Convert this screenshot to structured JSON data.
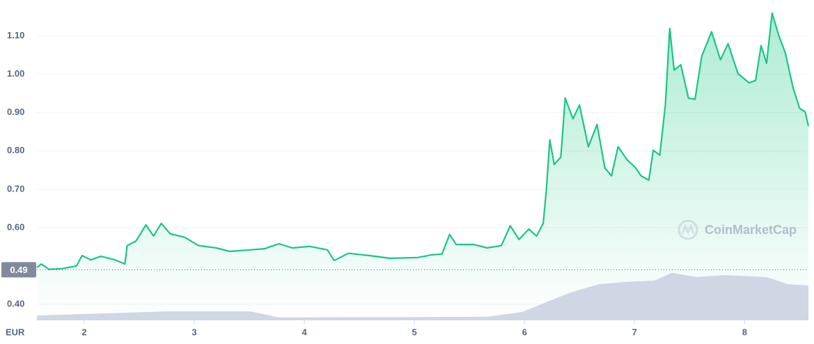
{
  "chart_data": {
    "type": "line",
    "currency": "EUR",
    "watermark": "CoinMarketCap",
    "current_price": {
      "value": 0.49,
      "label": "0.49"
    },
    "xlim": [
      1.57,
      8.58
    ],
    "xticks": [
      2,
      3,
      4,
      5,
      6,
      7,
      8
    ],
    "ylim": [
      0.358,
      1.194
    ],
    "yticks": [
      {
        "value": 0.4,
        "label": "0.40"
      },
      {
        "value": 0.6,
        "label": "0.60"
      },
      {
        "value": 0.7,
        "label": "0.70"
      },
      {
        "value": 0.8,
        "label": "0.80"
      },
      {
        "value": 0.9,
        "label": "0.90"
      },
      {
        "value": 1.0,
        "label": "1.00"
      },
      {
        "value": 1.1,
        "label": "1.10"
      }
    ],
    "y2lim": [
      0,
      100
    ],
    "grid": true,
    "series": [
      {
        "color": "#16c784",
        "x": [
          1.57,
          1.61,
          1.68,
          1.8,
          1.93,
          1.98,
          2.06,
          2.15,
          2.28,
          2.37,
          2.39,
          2.47,
          2.56,
          2.63,
          2.7,
          2.78,
          2.91,
          3.04,
          3.2,
          3.32,
          3.51,
          3.64,
          3.77,
          3.89,
          4.05,
          4.21,
          4.27,
          4.4,
          4.59,
          4.78,
          5.03,
          5.16,
          5.25,
          5.32,
          5.38,
          5.54,
          5.66,
          5.79,
          5.87,
          5.95,
          6.04,
          6.11,
          6.17,
          6.2,
          6.23,
          6.27,
          6.33,
          6.37,
          6.44,
          6.5,
          6.58,
          6.66,
          6.73,
          6.79,
          6.85,
          6.93,
          7.01,
          7.06,
          7.13,
          7.17,
          7.23,
          7.28,
          7.32,
          7.36,
          7.42,
          7.49,
          7.55,
          7.61,
          7.7,
          7.78,
          7.85,
          7.94,
          8.04,
          8.1,
          8.15,
          8.2,
          8.25,
          8.31,
          8.37,
          8.44,
          8.5,
          8.55,
          8.58
        ],
        "values": [
          0.496,
          0.505,
          0.491,
          0.493,
          0.5,
          0.527,
          0.516,
          0.525,
          0.516,
          0.505,
          0.553,
          0.565,
          0.607,
          0.578,
          0.611,
          0.584,
          0.575,
          0.553,
          0.547,
          0.538,
          0.542,
          0.545,
          0.558,
          0.547,
          0.551,
          0.542,
          0.514,
          0.533,
          0.527,
          0.52,
          0.522,
          0.529,
          0.531,
          0.582,
          0.556,
          0.556,
          0.547,
          0.553,
          0.605,
          0.569,
          0.596,
          0.578,
          0.611,
          0.702,
          0.829,
          0.765,
          0.784,
          0.938,
          0.884,
          0.92,
          0.811,
          0.869,
          0.756,
          0.735,
          0.811,
          0.778,
          0.756,
          0.735,
          0.724,
          0.802,
          0.789,
          0.92,
          1.12,
          1.011,
          1.025,
          0.938,
          0.935,
          1.047,
          1.111,
          1.038,
          1.08,
          1.002,
          0.978,
          0.984,
          1.075,
          1.029,
          1.16,
          1.102,
          1.056,
          0.965,
          0.911,
          0.902,
          0.865
        ]
      },
      {
        "color": "#cfd6e4",
        "axis": "y2",
        "x": [
          1.57,
          2.75,
          3.51,
          3.77,
          5.66,
          5.98,
          6.23,
          6.42,
          6.68,
          6.93,
          7.18,
          7.34,
          7.56,
          7.82,
          8.2,
          8.39,
          8.58
        ],
        "values": [
          1.5,
          2.8,
          2.8,
          0.9,
          1.1,
          2.6,
          6.1,
          8.7,
          11.3,
          12.0,
          12.4,
          14.8,
          13.5,
          14.1,
          13.5,
          11.3,
          10.9
        ]
      }
    ]
  }
}
